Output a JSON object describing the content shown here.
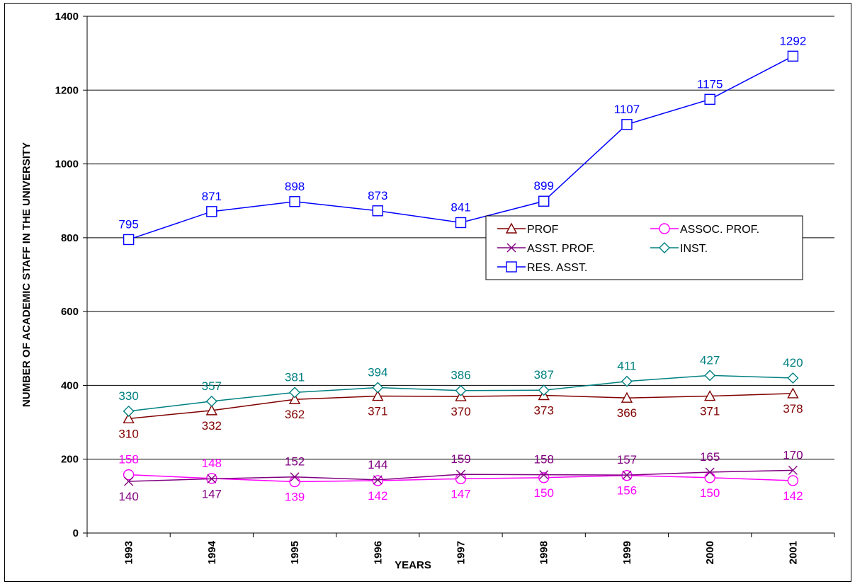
{
  "chart_data": {
    "type": "line",
    "xlabel": "YEARS",
    "ylabel": "NUMBER OF ACADEMIC STAFF IN THE UNIVERSITY",
    "categories": [
      "1993",
      "1994",
      "1995",
      "1996",
      "1997",
      "1998",
      "1999",
      "2000",
      "2001"
    ],
    "ylim": [
      0,
      1400
    ],
    "yticks": [
      0,
      200,
      400,
      600,
      800,
      1000,
      1200,
      1400
    ],
    "grid": "horizontal",
    "legend_position": "right, mid-height",
    "series": [
      {
        "name": "PROF",
        "marker": "triangle",
        "color": "#800000",
        "label_color": "#800000",
        "label_pos": "below",
        "values": [
          310,
          332,
          362,
          371,
          370,
          373,
          366,
          371,
          378
        ]
      },
      {
        "name": "ASSOC. PROF.",
        "marker": "circle",
        "color": "#ff00ff",
        "label_color": "#ff00ff",
        "label_pos": "mixed",
        "values": [
          158,
          148,
          139,
          142,
          147,
          150,
          156,
          150,
          142
        ]
      },
      {
        "name": "ASST. PROF.",
        "marker": "x",
        "color": "#800080",
        "label_color": "#800080",
        "label_pos": "mixed",
        "values": [
          140,
          147,
          152,
          144,
          159,
          158,
          157,
          165,
          170
        ]
      },
      {
        "name": "INST.",
        "marker": "diamond",
        "color": "#008080",
        "label_color": "#008080",
        "label_pos": "above",
        "values": [
          330,
          357,
          381,
          394,
          386,
          387,
          411,
          427,
          420
        ]
      },
      {
        "name": "RES. ASST.",
        "marker": "square",
        "color": "#0000ff",
        "label_color": "#0000ff",
        "label_pos": "above",
        "values": [
          795,
          871,
          898,
          873,
          841,
          899,
          1107,
          1175,
          1292
        ]
      }
    ]
  }
}
